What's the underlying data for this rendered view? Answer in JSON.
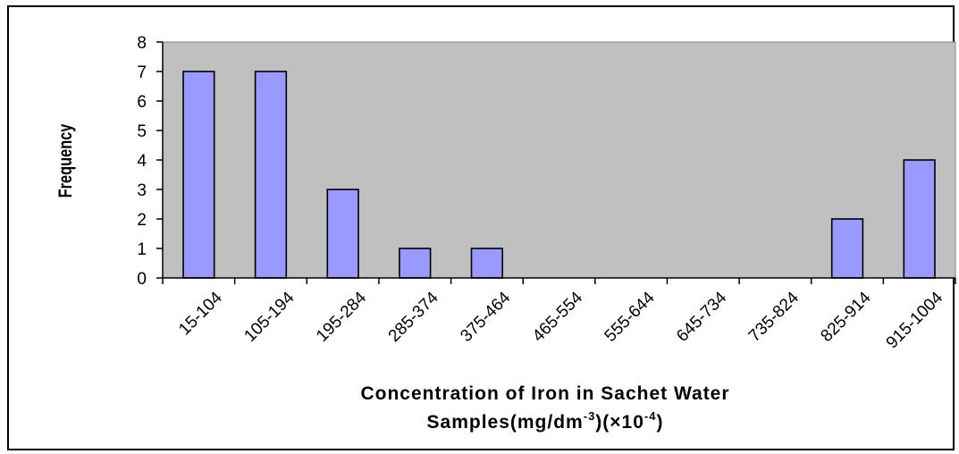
{
  "chart_data": {
    "type": "bar",
    "categories": [
      "15-104",
      "105-194",
      "195-284",
      "285-374",
      "375-464",
      "465-554",
      "555-644",
      "645-734",
      "735-824",
      "825-914",
      "915-1004"
    ],
    "values": [
      7,
      7,
      3,
      1,
      1,
      0,
      0,
      0,
      0,
      2,
      4
    ],
    "ylabel": "Frequency",
    "xlabel_line1": "Concentration of Iron in Sachet Water",
    "xlabel_line2_base": "Samples(mg/dm",
    "xlabel_line2_sup1": "-3",
    "xlabel_line2_mid": ")(×10",
    "xlabel_line2_sup2": "-4",
    "xlabel_line2_end": ")",
    "ylim": [
      0,
      8
    ],
    "yticks": [
      "0",
      "1",
      "2",
      "3",
      "4",
      "5",
      "6",
      "7",
      "8"
    ],
    "grid": false,
    "legend": "none",
    "colors": {
      "bar_fill": "#9999ff",
      "plot_background": "#c0c0c0",
      "axis": "#000000"
    }
  }
}
